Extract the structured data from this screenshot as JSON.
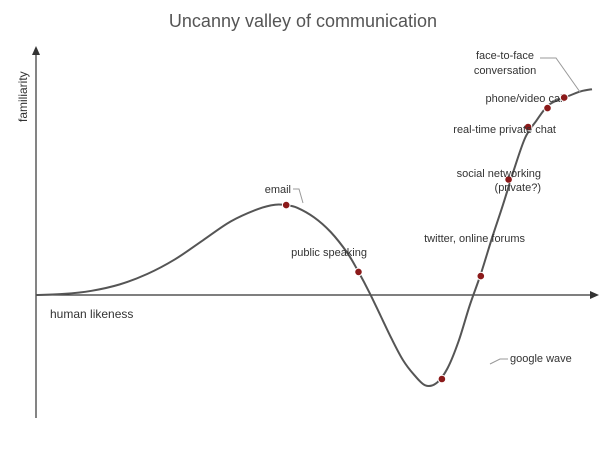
{
  "chart": {
    "title": "Uncanny valley of communication",
    "xlabel": "human likeness",
    "ylabel": "familiarity",
    "marker_color": "#8b1a1a",
    "curve_color": "#555555"
  },
  "chart_data": {
    "type": "line",
    "title": "Uncanny valley of communication",
    "xlabel": "human likeness",
    "ylabel": "familiarity",
    "grid": false,
    "xlim": [
      0,
      100
    ],
    "ylim": [
      -50,
      100
    ],
    "curve": {
      "x": [
        0,
        5,
        10,
        15,
        20,
        25,
        30,
        35,
        40,
        43,
        45,
        47,
        50,
        53,
        56,
        58,
        60,
        62,
        64,
        66,
        68,
        70,
        72,
        74,
        76,
        78,
        80,
        82,
        84,
        86,
        88,
        90,
        92,
        94,
        96,
        98,
        100
      ],
      "y": [
        0,
        0.5,
        2,
        5,
        10,
        17,
        26,
        35,
        41,
        43,
        42.8,
        41.5,
        37,
        30,
        20,
        11,
        1,
        -10,
        -21,
        -31,
        -38,
        -43,
        -42,
        -35,
        -22,
        -5,
        10,
        27,
        43,
        60,
        75,
        83,
        90,
        93,
        95,
        97,
        98
      ]
    },
    "points": [
      {
        "label": "email",
        "x": 45,
        "y": 42.8
      },
      {
        "label": "public speaking",
        "x": 58,
        "y": 11
      },
      {
        "label": "google wave",
        "x": 73,
        "y": -40
      },
      {
        "label": "twitter,  online forums",
        "x": 80,
        "y": 9
      },
      {
        "label": "social networking",
        "label2": "(private?)",
        "x": 85,
        "y": 55
      },
      {
        "label": "real-time private chat",
        "x": 88.5,
        "y": 80
      },
      {
        "label": "phone/video call",
        "x": 92,
        "y": 89
      },
      {
        "label": "face-to-face",
        "label2": "conversation",
        "x": 95,
        "y": 94
      }
    ]
  }
}
